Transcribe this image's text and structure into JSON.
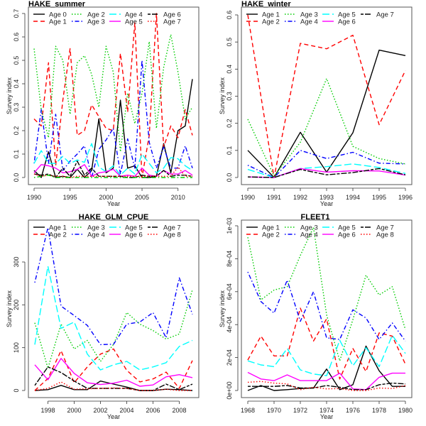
{
  "chart_data": [
    {
      "type": "line",
      "title": "HAKE_summer",
      "xlabel": "Year",
      "ylabel": "Survey index",
      "xlim": [
        1990,
        2012
      ],
      "ylim": [
        0,
        0.7
      ],
      "xticks": [
        1990,
        1995,
        2000,
        2005,
        2010
      ],
      "yticks": [
        0.0,
        0.1,
        0.2,
        0.3,
        0.4,
        0.5,
        0.6,
        0.7
      ],
      "ytick_labels": [
        "0.0",
        "0.1",
        "0.2",
        "0.3",
        "0.4",
        "0.5",
        "0.6",
        "0.7"
      ],
      "legend_position": "top",
      "x": [
        1990,
        1991,
        1992,
        1993,
        1994,
        1995,
        1996,
        1997,
        1998,
        1999,
        2000,
        2001,
        2002,
        2003,
        2004,
        2005,
        2006,
        2007,
        2008,
        2009,
        2010,
        2011,
        2012
      ],
      "series": [
        {
          "name": "Age 0",
          "color": "#000000",
          "style": "solid",
          "values": [
            0.03,
            0.0,
            0.11,
            0.0,
            0.005,
            0.0,
            0.035,
            0.0,
            0.03,
            0.25,
            0.02,
            0.04,
            0.33,
            0.04,
            0.05,
            0.0,
            0.0,
            0.005,
            0.145,
            0.02,
            0.2,
            0.22,
            0.42
          ]
        },
        {
          "name": "Age 1",
          "color": "#ff0000",
          "style": "dashed",
          "values": [
            0.25,
            0.22,
            0.49,
            0.05,
            0.33,
            0.55,
            0.18,
            0.2,
            0.31,
            0.26,
            0.21,
            0.2,
            0.53,
            0.28,
            0.66,
            0.0,
            0.18,
            0.7,
            0.13,
            0.22,
            0.17,
            0.29,
            0.18
          ]
        },
        {
          "name": "Age 2",
          "color": "#00cc00",
          "style": "dotted",
          "values": [
            0.55,
            0.29,
            0.17,
            0.56,
            0.5,
            0.27,
            0.49,
            0.52,
            0.44,
            0.3,
            0.56,
            0.45,
            0.11,
            0.36,
            0.23,
            0.36,
            0.58,
            0.21,
            0.47,
            0.61,
            0.45,
            0.25,
            0.3
          ]
        },
        {
          "name": "Age 3",
          "color": "#0000ff",
          "style": "dashdot",
          "values": [
            0.06,
            0.29,
            0.06,
            0.27,
            0.03,
            0.07,
            0.1,
            0.135,
            0.0,
            0.12,
            0.16,
            0.21,
            0.015,
            0.165,
            0.04,
            0.5,
            0.15,
            0.04,
            0.13,
            0.04,
            0.04,
            0.135,
            0.04
          ]
        },
        {
          "name": "Age 4",
          "color": "#00ffff",
          "style": "longdash",
          "values": [
            0.06,
            0.115,
            0.06,
            0.06,
            0.09,
            0.06,
            0.075,
            0.065,
            0.145,
            0.045,
            0.025,
            0.05,
            0.01,
            0.04,
            0.015,
            0.1,
            0.06,
            0.02,
            0.04,
            0.085,
            0.08,
            0.05,
            0.03
          ]
        },
        {
          "name": "Age 5",
          "color": "#ff00ff",
          "style": "solid",
          "values": [
            0.02,
            0.055,
            0.05,
            0.04,
            0.02,
            0.025,
            0.035,
            0.055,
            0.005,
            0.02,
            0.025,
            0.035,
            0.005,
            0.01,
            0.005,
            0.04,
            0.01,
            0.005,
            0.03,
            0.015,
            0.015,
            0.03,
            0.01
          ]
        },
        {
          "name": "Age 6",
          "color": "#000000",
          "style": "twodash",
          "values": [
            0.015,
            0.01,
            0.015,
            0.0,
            0.04,
            0.005,
            0.07,
            0.01,
            0.04,
            0.005,
            0.005,
            0.005,
            0.005,
            0.0,
            0.0,
            0.01,
            0.005,
            0.005,
            0.03,
            0.005,
            0.01,
            0.01,
            0.005
          ]
        },
        {
          "name": "Age 7",
          "color": "#ff0000",
          "style": "dotted",
          "values": [
            0.015,
            0.005,
            0.01,
            0.005,
            0.005,
            0.0,
            0.005,
            0.005,
            0.005,
            0.005,
            0.005,
            0.005,
            0.005,
            0.005,
            0.005,
            0.005,
            0.005,
            0.005,
            0.005,
            0.005,
            0.045,
            0.005,
            0.005
          ]
        },
        {
          "name": "",
          "color": "#00cc00",
          "style": "dashdot",
          "values": [
            0.0,
            0.005,
            0.01,
            0.0,
            0.0,
            0.0,
            0.0,
            0.0,
            0.0,
            0.0,
            0.0,
            0.0,
            0.0,
            0.0,
            0.0,
            0.0,
            0.0,
            0.0,
            0.0,
            0.0,
            0.0,
            0.0,
            0.0
          ]
        }
      ]
    },
    {
      "type": "line",
      "title": "HAKE_winter",
      "xlabel": "Year",
      "ylabel": "Survey index",
      "xlim": [
        1990,
        1996
      ],
      "ylim": [
        0,
        0.6
      ],
      "xticks": [
        1990,
        1991,
        1992,
        1993,
        1994,
        1995,
        1996
      ],
      "yticks": [
        0.0,
        0.1,
        0.2,
        0.3,
        0.4,
        0.5,
        0.6
      ],
      "ytick_labels": [
        "0.0",
        "0.1",
        "0.2",
        "0.3",
        "0.4",
        "0.5",
        "0.6"
      ],
      "legend_position": "top",
      "x": [
        1990,
        1991,
        1992,
        1993,
        1994,
        1995,
        1996
      ],
      "series": [
        {
          "name": "Age 1",
          "color": "#000000",
          "style": "solid",
          "values": [
            0.1,
            0.0,
            0.167,
            0.02,
            0.165,
            0.47,
            0.45
          ]
        },
        {
          "name": "Age 2",
          "color": "#ff0000",
          "style": "dashed",
          "values": [
            0.6,
            0.0,
            0.495,
            0.475,
            0.525,
            0.195,
            0.395
          ]
        },
        {
          "name": "Age 3",
          "color": "#00cc00",
          "style": "dotted",
          "values": [
            0.215,
            0.005,
            0.13,
            0.365,
            0.115,
            0.07,
            0.05
          ]
        },
        {
          "name": "Age 4",
          "color": "#0000ff",
          "style": "dashdot",
          "values": [
            0.045,
            0.0,
            0.1,
            0.07,
            0.093,
            0.053,
            0.05
          ]
        },
        {
          "name": "Age 5",
          "color": "#00ffff",
          "style": "longdash",
          "values": [
            0.03,
            0.0,
            0.033,
            0.04,
            0.05,
            0.037,
            0.015
          ]
        },
        {
          "name": "Age 6",
          "color": "#ff00ff",
          "style": "solid",
          "values": [
            0.002,
            0.0,
            0.033,
            0.02,
            0.025,
            0.024,
            0.009
          ]
        },
        {
          "name": "Age 7",
          "color": "#000000",
          "style": "twodash",
          "values": [
            0.002,
            0.0,
            0.03,
            0.01,
            0.018,
            0.033,
            0.01
          ]
        }
      ]
    },
    {
      "type": "line",
      "title": "HAKE_GLM_CPUE",
      "xlabel": "Year",
      "ylabel": "Survey index",
      "xlim": [
        1997,
        2009
      ],
      "ylim": [
        0,
        380
      ],
      "xticks": [
        1998,
        2000,
        2002,
        2004,
        2006,
        2008
      ],
      "yticks": [
        0,
        100,
        200,
        300
      ],
      "ytick_labels": [
        "0",
        "100",
        "200",
        "300"
      ],
      "legend_position": "top",
      "x": [
        1997,
        1998,
        1999,
        2000,
        2001,
        2002,
        2003,
        2004,
        2005,
        2006,
        2007,
        2008,
        2009
      ],
      "series": [
        {
          "name": "Age 1",
          "color": "#000000",
          "style": "solid",
          "values": [
            0,
            2,
            12,
            2,
            2,
            22,
            15,
            8,
            0,
            0,
            3,
            2,
            0
          ]
        },
        {
          "name": "Age 2",
          "color": "#ff0000",
          "style": "dashed",
          "values": [
            0,
            28,
            93,
            18,
            55,
            85,
            97,
            47,
            20,
            27,
            43,
            5,
            70
          ]
        },
        {
          "name": "Age 3",
          "color": "#00cc00",
          "style": "dotted",
          "values": [
            158,
            52,
            155,
            97,
            117,
            68,
            108,
            182,
            155,
            140,
            120,
            132,
            235
          ]
        },
        {
          "name": "Age 4",
          "color": "#0000ff",
          "style": "dashdot",
          "values": [
            252,
            380,
            197,
            175,
            152,
            107,
            108,
            155,
            160,
            182,
            123,
            263,
            178
          ]
        },
        {
          "name": "Age 5",
          "color": "#00ffff",
          "style": "longdash",
          "values": [
            107,
            290,
            145,
            160,
            85,
            48,
            60,
            68,
            48,
            55,
            65,
            103,
            117
          ]
        },
        {
          "name": "Age 6",
          "color": "#ff00ff",
          "style": "solid",
          "values": [
            60,
            25,
            75,
            40,
            18,
            14,
            17,
            24,
            10,
            13,
            32,
            37,
            30
          ]
        },
        {
          "name": "Age 7",
          "color": "#000000",
          "style": "twodash",
          "values": [
            12,
            55,
            42,
            22,
            5,
            5,
            5,
            5,
            0,
            0,
            15,
            2,
            15
          ]
        },
        {
          "name": "Age 8",
          "color": "#ff0000",
          "style": "dotted",
          "values": [
            0,
            5,
            20,
            3,
            4,
            5,
            6,
            5,
            0,
            0,
            3,
            0,
            0
          ]
        }
      ]
    },
    {
      "type": "line",
      "title": "FLEET1",
      "xlabel": "Year",
      "ylabel": "Survey index",
      "xlim": [
        1968,
        1980
      ],
      "ylim": [
        0,
        0.001
      ],
      "xticks": [
        1968,
        1970,
        1972,
        1974,
        1976,
        1978,
        1980
      ],
      "yticks": [
        0,
        0.0002,
        0.0004,
        0.0006,
        0.0008,
        0.001
      ],
      "ytick_labels": [
        "0e+00",
        "2e-04",
        "4e-04",
        "6e-04",
        "8e-04",
        "1e-03"
      ],
      "legend_position": "top",
      "x": [
        1968,
        1969,
        1970,
        1971,
        1972,
        1973,
        1974,
        1975,
        1976,
        1977,
        1978,
        1979,
        1980
      ],
      "series": [
        {
          "name": "Age 1",
          "color": "#000000",
          "style": "solid",
          "values": [
            0.0,
            3e-05,
            0.0,
            5e-06,
            1.2e-05,
            1.5e-05,
            0.00013,
            5e-06,
            3.5e-05,
            0.00027,
            0.00012,
            2.5e-05,
            2.5e-05
          ]
        },
        {
          "name": "Age 2",
          "color": "#ff0000",
          "style": "dashed",
          "values": [
            0.000185,
            0.00033,
            0.00021,
            0.00021,
            0.0005,
            0.0003,
            0.000435,
            7e-05,
            0.000255,
            0.000115,
            0.00035,
            0.00033,
            0.00016
          ]
        },
        {
          "name": "Age 3",
          "color": "#00cc00",
          "style": "dotted",
          "values": [
            0.00093,
            0.00055,
            0.00061,
            0.00063,
            0.00082,
            0.00099,
            0.00046,
            0.00018,
            0.00043,
            0.0007,
            0.00058,
            0.00063,
            0.00037
          ]
        },
        {
          "name": "Age 4",
          "color": "#0000ff",
          "style": "dashdot",
          "values": [
            0.00072,
            0.00054,
            0.00047,
            0.00067,
            0.00042,
            0.0006,
            0.00032,
            0.00031,
            0.00049,
            0.00044,
            0.00031,
            0.00041,
            0.0003
          ]
        },
        {
          "name": "Age 5",
          "color": "#00ffff",
          "style": "longdash",
          "values": [
            0.00018,
            0.000155,
            0.000145,
            0.000255,
            0.000125,
            0.0001,
            9e-05,
            0.000305,
            0.00015,
            0.00026,
            0.000145,
            0.000335,
            0.000225
          ]
        },
        {
          "name": "Age 6",
          "color": "#ff00ff",
          "style": "solid",
          "values": [
            0.00011,
            7e-05,
            6e-05,
            9.5e-05,
            6e-05,
            6e-05,
            6e-05,
            0.000105,
            1e-05,
            5e-06,
            8e-05,
            0.000105,
            0.000105
          ]
        },
        {
          "name": "Age 7",
          "color": "#000000",
          "style": "twodash",
          "values": [
            2.5e-05,
            2.5e-05,
            2.5e-05,
            3e-05,
            1.5e-05,
            1.5e-05,
            3e-05,
            2e-05,
            5e-06,
            5e-06,
            3.5e-05,
            4.5e-05,
            4e-05
          ]
        },
        {
          "name": "Age 8",
          "color": "#ff0000",
          "style": "dotted",
          "values": [
            5e-05,
            5.5e-05,
            4.5e-05,
            4e-05,
            5e-06,
            2e-05,
            1e-05,
            1.2e-05,
            0.0,
            0.0,
            1.5e-05,
            1.2e-05,
            3e-05
          ]
        }
      ]
    }
  ]
}
